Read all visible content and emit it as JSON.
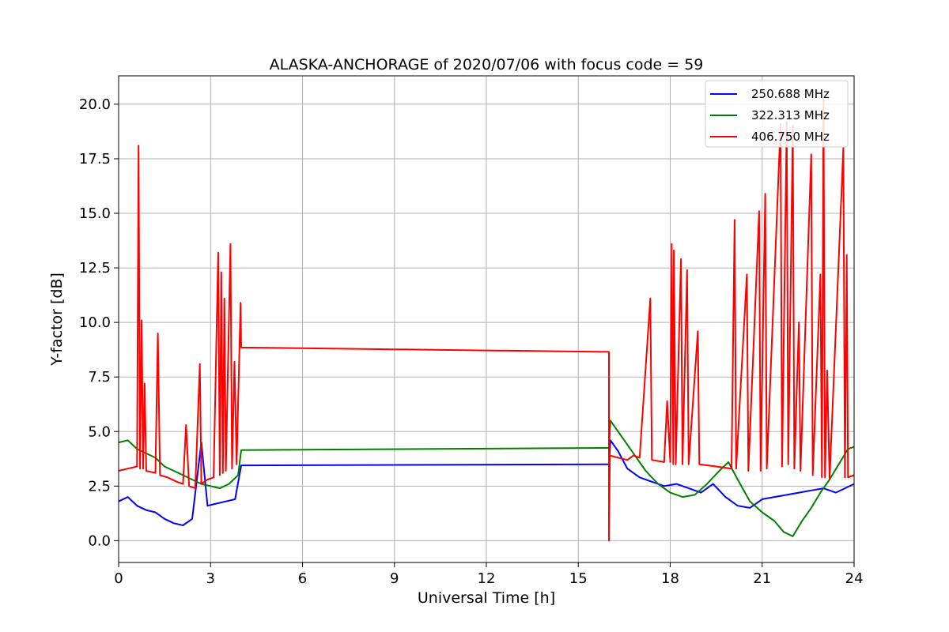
{
  "chart_data": {
    "type": "line",
    "title": "ALASKA-ANCHORAGE of 2020/07/06 with focus code = 59",
    "xlabel": "Universal Time [h]",
    "ylabel": "Y-factor [dB]",
    "xlim": [
      0,
      24
    ],
    "ylim": [
      -1.0,
      21.3
    ],
    "xticks": [
      0,
      3,
      6,
      9,
      12,
      15,
      18,
      21,
      24
    ],
    "xtick_labels": [
      "0",
      "3",
      "6",
      "9",
      "12",
      "15",
      "18",
      "21",
      "24"
    ],
    "yticks": [
      0.0,
      2.5,
      5.0,
      7.5,
      10.0,
      12.5,
      15.0,
      17.5,
      20.0
    ],
    "ytick_labels": [
      "0.0",
      "2.5",
      "5.0",
      "7.5",
      "10.0",
      "12.5",
      "15.0",
      "17.5",
      "20.0"
    ],
    "grid": true,
    "legend_position": "top-right",
    "series": [
      {
        "name": "250.688 MHz",
        "color": "#0000ff",
        "points": [
          [
            0,
            1.8
          ],
          [
            0.3,
            2.0
          ],
          [
            0.6,
            1.6
          ],
          [
            0.9,
            1.4
          ],
          [
            1.2,
            1.3
          ],
          [
            1.5,
            1.0
          ],
          [
            1.8,
            0.8
          ],
          [
            2.1,
            0.7
          ],
          [
            2.4,
            1.0
          ],
          [
            2.7,
            4.5
          ],
          [
            2.9,
            1.6
          ],
          [
            3.2,
            1.7
          ],
          [
            3.5,
            1.8
          ],
          [
            3.8,
            1.9
          ],
          [
            4.0,
            3.45
          ],
          [
            16.0,
            3.5
          ],
          [
            16.05,
            4.6
          ],
          [
            16.3,
            4.1
          ],
          [
            16.6,
            3.3
          ],
          [
            17.0,
            2.9
          ],
          [
            17.4,
            2.7
          ],
          [
            17.8,
            2.5
          ],
          [
            18.2,
            2.6
          ],
          [
            18.6,
            2.4
          ],
          [
            19.0,
            2.2
          ],
          [
            19.4,
            2.6
          ],
          [
            19.8,
            2.0
          ],
          [
            20.2,
            1.6
          ],
          [
            20.6,
            1.5
          ],
          [
            21.0,
            1.9
          ],
          [
            21.4,
            2.0
          ],
          [
            21.8,
            2.1
          ],
          [
            22.2,
            2.2
          ],
          [
            22.6,
            2.3
          ],
          [
            23.0,
            2.4
          ],
          [
            23.4,
            2.2
          ],
          [
            23.7,
            2.4
          ],
          [
            24.0,
            2.6
          ]
        ]
      },
      {
        "name": "322.313 MHz",
        "color": "#008000",
        "points": [
          [
            0,
            4.5
          ],
          [
            0.3,
            4.6
          ],
          [
            0.6,
            4.2
          ],
          [
            0.9,
            4.0
          ],
          [
            1.2,
            3.8
          ],
          [
            1.5,
            3.4
          ],
          [
            1.8,
            3.2
          ],
          [
            2.1,
            3.0
          ],
          [
            2.4,
            2.8
          ],
          [
            2.7,
            2.6
          ],
          [
            3.0,
            2.5
          ],
          [
            3.3,
            2.4
          ],
          [
            3.6,
            2.6
          ],
          [
            3.9,
            3.0
          ],
          [
            4.0,
            4.15
          ],
          [
            16.0,
            4.25
          ],
          [
            16.05,
            5.5
          ],
          [
            16.4,
            4.8
          ],
          [
            16.8,
            4.0
          ],
          [
            17.2,
            3.2
          ],
          [
            17.6,
            2.6
          ],
          [
            18.0,
            2.2
          ],
          [
            18.4,
            2.0
          ],
          [
            18.8,
            2.1
          ],
          [
            19.2,
            2.6
          ],
          [
            19.6,
            3.2
          ],
          [
            19.9,
            3.6
          ],
          [
            20.2,
            2.8
          ],
          [
            20.6,
            1.8
          ],
          [
            21.0,
            1.3
          ],
          [
            21.4,
            0.9
          ],
          [
            21.7,
            0.4
          ],
          [
            22.0,
            0.2
          ],
          [
            22.3,
            0.9
          ],
          [
            22.6,
            1.5
          ],
          [
            22.9,
            2.2
          ],
          [
            23.2,
            2.8
          ],
          [
            23.5,
            3.5
          ],
          [
            23.8,
            4.2
          ],
          [
            24.0,
            4.3
          ]
        ]
      },
      {
        "name": "406.750 MHz",
        "color": "#ff0000",
        "points": [
          [
            0,
            3.2
          ],
          [
            0.3,
            3.3
          ],
          [
            0.6,
            3.4
          ],
          [
            0.65,
            18.1
          ],
          [
            0.7,
            3.3
          ],
          [
            0.75,
            10.1
          ],
          [
            0.8,
            3.3
          ],
          [
            0.85,
            7.2
          ],
          [
            0.9,
            3.2
          ],
          [
            1.2,
            3.1
          ],
          [
            1.28,
            9.5
          ],
          [
            1.35,
            3.0
          ],
          [
            1.6,
            2.9
          ],
          [
            1.9,
            2.7
          ],
          [
            2.1,
            2.6
          ],
          [
            2.2,
            5.3
          ],
          [
            2.3,
            2.5
          ],
          [
            2.5,
            2.4
          ],
          [
            2.65,
            8.1
          ],
          [
            2.7,
            2.6
          ],
          [
            2.9,
            2.8
          ],
          [
            3.1,
            2.9
          ],
          [
            3.25,
            13.2
          ],
          [
            3.3,
            3.0
          ],
          [
            3.35,
            12.3
          ],
          [
            3.4,
            3.1
          ],
          [
            3.45,
            11.1
          ],
          [
            3.5,
            3.2
          ],
          [
            3.65,
            13.6
          ],
          [
            3.7,
            3.3
          ],
          [
            3.78,
            8.2
          ],
          [
            3.85,
            3.5
          ],
          [
            3.98,
            10.9
          ],
          [
            4.0,
            8.85
          ],
          [
            16.0,
            8.65
          ],
          [
            16.0,
            0.0
          ],
          [
            16.03,
            3.9
          ],
          [
            16.3,
            3.8
          ],
          [
            16.6,
            3.7
          ],
          [
            16.8,
            3.9
          ],
          [
            17.0,
            3.8
          ],
          [
            17.35,
            11.1
          ],
          [
            17.4,
            3.7
          ],
          [
            17.8,
            3.6
          ],
          [
            17.9,
            6.4
          ],
          [
            18.0,
            3.6
          ],
          [
            18.05,
            13.6
          ],
          [
            18.1,
            3.5
          ],
          [
            18.12,
            13.3
          ],
          [
            18.18,
            3.5
          ],
          [
            18.35,
            12.9
          ],
          [
            18.4,
            3.5
          ],
          [
            18.55,
            12.4
          ],
          [
            18.6,
            3.5
          ],
          [
            18.9,
            9.6
          ],
          [
            18.95,
            3.5
          ],
          [
            19.5,
            3.4
          ],
          [
            20.0,
            3.3
          ],
          [
            20.1,
            14.7
          ],
          [
            20.15,
            3.3
          ],
          [
            20.5,
            12.2
          ],
          [
            20.55,
            3.2
          ],
          [
            20.9,
            15.1
          ],
          [
            20.95,
            3.2
          ],
          [
            21.1,
            15.9
          ],
          [
            21.15,
            3.3
          ],
          [
            21.6,
            19.1
          ],
          [
            21.65,
            3.4
          ],
          [
            21.8,
            19.2
          ],
          [
            21.85,
            3.5
          ],
          [
            22.0,
            19.0
          ],
          [
            22.05,
            3.3
          ],
          [
            22.2,
            10.0
          ],
          [
            22.25,
            3.2
          ],
          [
            22.6,
            17.7
          ],
          [
            22.65,
            3.0
          ],
          [
            22.9,
            12.2
          ],
          [
            22.95,
            2.9
          ],
          [
            23.0,
            20.3
          ],
          [
            23.05,
            2.9
          ],
          [
            23.12,
            7.8
          ],
          [
            23.2,
            2.8
          ],
          [
            23.65,
            18.0
          ],
          [
            23.7,
            2.9
          ],
          [
            23.76,
            13.1
          ],
          [
            23.8,
            2.9
          ],
          [
            24.0,
            3.0
          ]
        ]
      }
    ]
  }
}
